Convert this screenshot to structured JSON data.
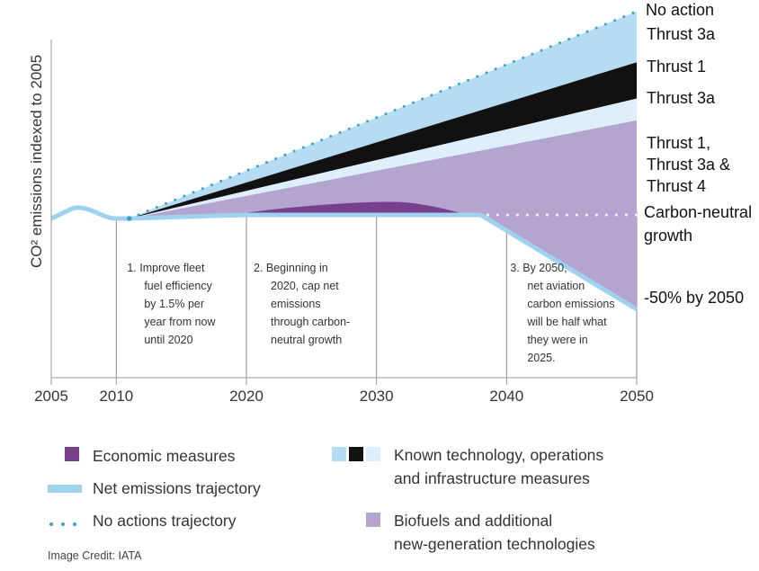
{
  "chart_data": {
    "type": "area",
    "title": "",
    "xlabel": "",
    "ylabel": "CO² emissions indexed to 2005",
    "xlim": [
      2005,
      2050
    ],
    "x_ticks": [
      "2005",
      "2010",
      "2020",
      "2030",
      "2040",
      "2050"
    ],
    "grid": false,
    "series": [
      {
        "name": "No action",
        "x": [
          2011,
          2050
        ],
        "y": [
          1.0,
          2.14
        ]
      },
      {
        "name": "Net emissions trajectory",
        "x": [
          2005,
          2007,
          2010,
          2011,
          2020,
          2038,
          2050
        ],
        "y": [
          1.0,
          1.06,
          1.0,
          1.0,
          1.02,
          1.02,
          0.5
        ]
      },
      {
        "name": "Carbon-neutral growth",
        "x": [
          2038,
          2050
        ],
        "y": [
          1.02,
          1.02
        ]
      }
    ],
    "band_edges_2050": {
      "no_action": 2.14,
      "thrust_3a_top": 1.86,
      "thrust_1": 1.66,
      "thrust_3a_lower": 1.54,
      "biofuels_bottom": 0.5
    },
    "economic_measures_peak": {
      "x": 2032,
      "y": 1.09
    },
    "right_labels": {
      "no_action": "No action",
      "thrust_3a_top": "Thrust 3a",
      "thrust_1": "Thrust 1",
      "thrust_3a_lower": "Thrust 3a",
      "combined": [
        "Thrust 1,",
        "Thrust 3a &",
        "Thrust 4"
      ],
      "carbon_neutral": [
        "Carbon-neutral",
        "growth"
      ],
      "minus_50": "-50% by 2050"
    },
    "annotations": [
      {
        "lines": [
          "1.  Improve fleet",
          "fuel efficiency",
          "by 1.5% per",
          "year from now",
          "until 2020"
        ]
      },
      {
        "lines": [
          "2.  Beginning in",
          "2020, cap net",
          "emissions",
          "through carbon-",
          "neutral growth"
        ]
      },
      {
        "lines": [
          "3.  By 2050,",
          "net aviation",
          "carbon emissions",
          "will be half what",
          "they were in",
          "2025."
        ]
      }
    ],
    "colors": {
      "known_tech_light_blue": "#b5dcf2",
      "known_tech_black": "#111111",
      "known_tech_pale": "#deeefa",
      "biofuels": "#b4a4d0",
      "economic": "#7a3e8e",
      "net_trajectory": "#9fd2ee",
      "no_action_dots": "#3aa3c9"
    }
  },
  "legend": {
    "economic": "Economic measures",
    "net": "Net emissions trajectory",
    "no_action": "No actions trajectory",
    "known_line1": "Known technology, operations",
    "known_line2": "and infrastructure measures",
    "bio_line1": "Biofuels and additional",
    "bio_line2": "new-generation technologies"
  },
  "credit": "Image Credit: IATA"
}
